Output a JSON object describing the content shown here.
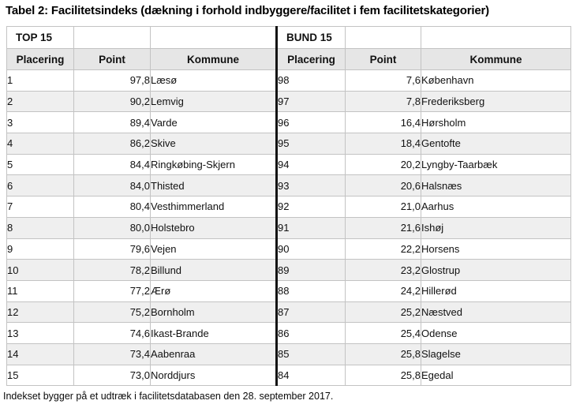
{
  "title": "Tabel 2: Facilitetsindeks (dækning i forhold indbyggere/facilitet i fem facilitetskategorier)",
  "footnote": "Indekset bygger på et udtræk i facilitetsdatabasen den 28. september 2017.",
  "table": {
    "top": {
      "group_label": "TOP 15",
      "headers": [
        "Placering",
        "Point",
        "Kommune"
      ],
      "rows": [
        [
          "1",
          "97,8",
          "Læsø"
        ],
        [
          "2",
          "90,2",
          "Lemvig"
        ],
        [
          "3",
          "89,4",
          "Varde"
        ],
        [
          "4",
          "86,2",
          "Skive"
        ],
        [
          "5",
          "84,4",
          "Ringkøbing-Skjern"
        ],
        [
          "6",
          "84,0",
          "Thisted"
        ],
        [
          "7",
          "80,4",
          "Vesthimmerland"
        ],
        [
          "8",
          "80,0",
          "Holstebro"
        ],
        [
          "9",
          "79,6",
          "Vejen"
        ],
        [
          "10",
          "78,2",
          "Billund"
        ],
        [
          "11",
          "77,2",
          "Ærø"
        ],
        [
          "12",
          "75,2",
          "Bornholm"
        ],
        [
          "13",
          "74,6",
          "Ikast-Brande"
        ],
        [
          "14",
          "73,4",
          "Aabenraa"
        ],
        [
          "15",
          "73,0",
          "Norddjurs"
        ]
      ]
    },
    "bund": {
      "group_label": "BUND 15",
      "headers": [
        "Placering",
        "Point",
        "Kommune"
      ],
      "rows": [
        [
          "98",
          "7,6",
          "København"
        ],
        [
          "97",
          "7,8",
          "Frederiksberg"
        ],
        [
          "96",
          "16,4",
          "Hørsholm"
        ],
        [
          "95",
          "18,4",
          "Gentofte"
        ],
        [
          "94",
          "20,2",
          "Lyngby-Taarbæk"
        ],
        [
          "93",
          "20,6",
          "Halsnæs"
        ],
        [
          "92",
          "21,0",
          "Aarhus"
        ],
        [
          "91",
          "21,6",
          "Ishøj"
        ],
        [
          "90",
          "22,2",
          "Horsens"
        ],
        [
          "89",
          "23,2",
          "Glostrup"
        ],
        [
          "88",
          "24,2",
          "Hillerød"
        ],
        [
          "87",
          "25,2",
          "Næstved"
        ],
        [
          "86",
          "25,4",
          "Odense"
        ],
        [
          "85",
          "25,8",
          "Slagelse"
        ],
        [
          "84",
          "25,8",
          "Egedal"
        ]
      ]
    }
  },
  "colors": {
    "header_bg": "#e6e6e6",
    "stripe_bg": "#efefef",
    "border": "#c3c3c3",
    "divider": "#141414"
  }
}
